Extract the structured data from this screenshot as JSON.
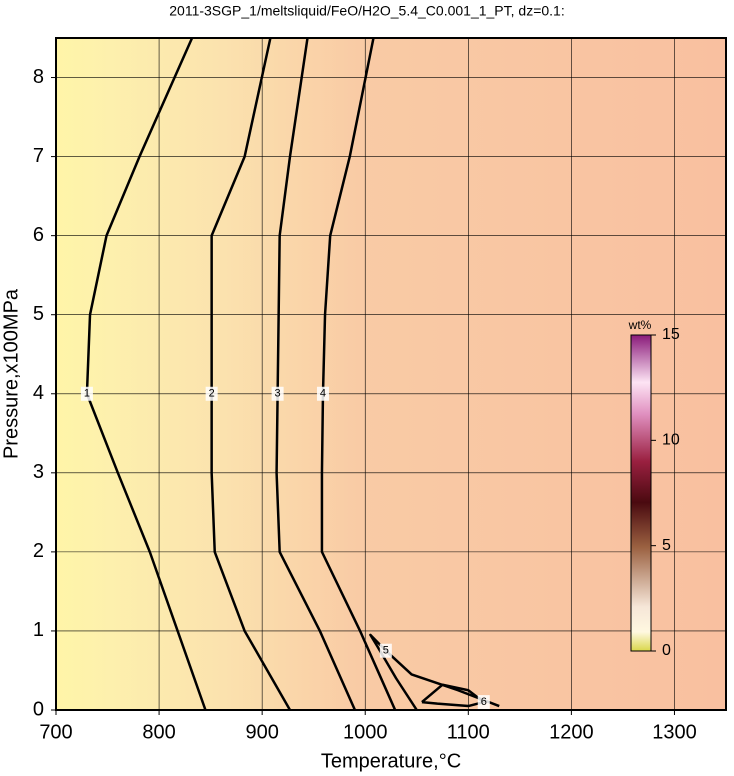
{
  "chart_data": {
    "type": "contour",
    "title": "2011-3SGP_1/meltsliquid/FeO/H2O_5.4_C0.001_1_PT, dz=0.1:",
    "x_label": "Temperature,°C",
    "y_label": "Pressure,x100MPa",
    "xlim": [
      700,
      1350
    ],
    "ylim": [
      0,
      8.5
    ],
    "xticks": [
      700,
      800,
      900,
      1000,
      1100,
      1200,
      1300
    ],
    "yticks": [
      0,
      1,
      2,
      3,
      4,
      5,
      6,
      7,
      8
    ],
    "grid": true,
    "color": "#000000",
    "contours": [
      {
        "level": 1,
        "x": [
          845,
          818,
          791,
          760,
          730,
          733,
          749,
          781,
          832
        ],
        "y": [
          0,
          1,
          2,
          3,
          4,
          5,
          6,
          7,
          8.5
        ]
      },
      {
        "level": 2,
        "x": [
          927,
          883,
          854,
          851,
          851,
          851,
          851,
          883,
          908
        ],
        "y": [
          0,
          1,
          2,
          3,
          4,
          5,
          6,
          7,
          8.5
        ]
      },
      {
        "level": 3,
        "x": [
          990,
          956,
          917,
          914,
          915,
          916,
          917,
          927,
          944
        ],
        "y": [
          0,
          1,
          2,
          3,
          4,
          5,
          6,
          7,
          8.5
        ]
      },
      {
        "level": 4,
        "x": [
          1029,
          995,
          958,
          958,
          959,
          961,
          966,
          985,
          1008
        ],
        "y": [
          0,
          1,
          2,
          3,
          4,
          5,
          6,
          7,
          8.5
        ]
      },
      {
        "level": 5,
        "x": [
          1050,
          1030,
          1012,
          1005,
          1020,
          1045,
          1090,
          1130
        ],
        "y": [
          0,
          0.4,
          0.8,
          0.95,
          0.75,
          0.45,
          0.25,
          0.05
        ]
      },
      {
        "level": 6,
        "x": [
          1055,
          1075,
          1100,
          1115,
          1100,
          1070,
          1055
        ],
        "y": [
          0.1,
          0.32,
          0.25,
          0.1,
          0.05,
          0.08,
          0.1
        ]
      }
    ],
    "colorbar": {
      "label": "wt%",
      "lim": [
        0,
        15
      ],
      "ticks": [
        0,
        5,
        10,
        15
      ]
    }
  }
}
